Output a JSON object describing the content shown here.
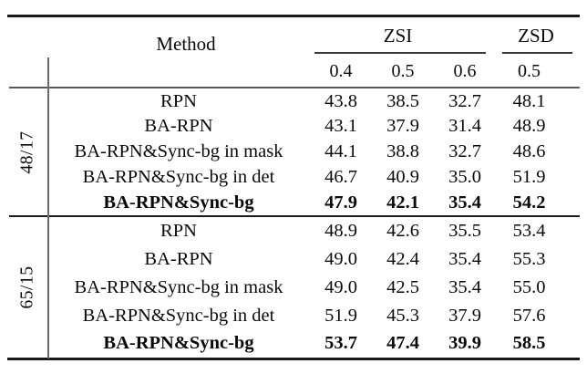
{
  "figure": {
    "header": {
      "method": "Method",
      "zsi": "ZSI",
      "zsd": "ZSD",
      "zsi_thresholds": [
        "0.4",
        "0.5",
        "0.6"
      ],
      "zsd_threshold": "0.5"
    },
    "groups": [
      {
        "split": "48/17",
        "rows": [
          {
            "method": "RPN",
            "values": [
              "43.8",
              "38.5",
              "32.7",
              "48.1"
            ]
          },
          {
            "method": "BA-RPN",
            "values": [
              "43.1",
              "37.9",
              "31.4",
              "48.9"
            ]
          },
          {
            "method": "BA-RPN&Sync-bg in mask",
            "values": [
              "44.1",
              "38.8",
              "32.7",
              "48.6"
            ]
          },
          {
            "method": "BA-RPN&Sync-bg in det",
            "values": [
              "46.7",
              "40.9",
              "35.0",
              "51.9"
            ]
          },
          {
            "method": "BA-RPN&Sync-bg",
            "values": [
              "47.9",
              "42.1",
              "35.4",
              "54.2"
            ]
          }
        ]
      },
      {
        "split": "65/15",
        "rows": [
          {
            "method": "RPN",
            "values": [
              "48.9",
              "42.6",
              "35.5",
              "53.4"
            ]
          },
          {
            "method": "BA-RPN",
            "values": [
              "49.0",
              "42.4",
              "35.4",
              "55.3"
            ]
          },
          {
            "method": "BA-RPN&Sync-bg in mask",
            "values": [
              "49.0",
              "42.5",
              "35.4",
              "55.0"
            ]
          },
          {
            "method": "BA-RPN&Sync-bg in det",
            "values": [
              "51.9",
              "45.3",
              "37.9",
              "57.6"
            ]
          },
          {
            "method": "BA-RPN&Sync-bg",
            "values": [
              "53.7",
              "47.4",
              "39.9",
              "58.5"
            ]
          }
        ]
      }
    ]
  }
}
